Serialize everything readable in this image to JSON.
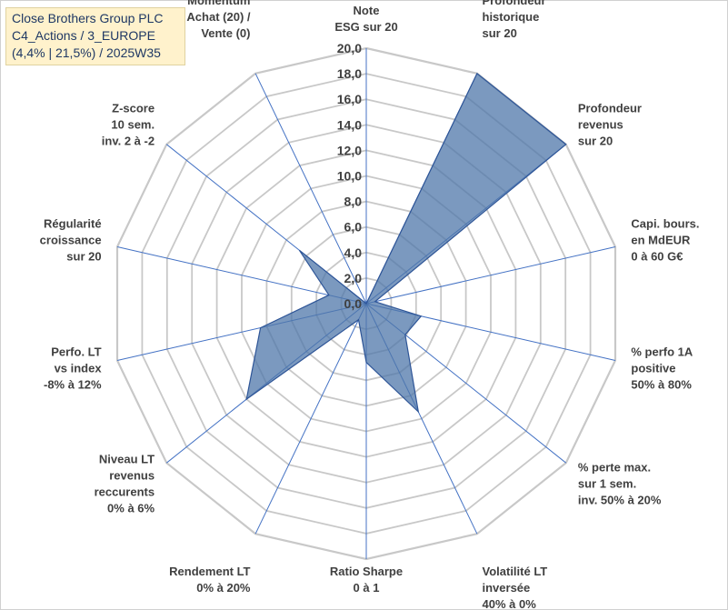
{
  "title_box": {
    "line1": "Close Brothers Group PLC",
    "line2": "C4_Actions / 3_EUROPE",
    "line3": "(4,4% | 21,5%) / 2025W35"
  },
  "chart_data": {
    "type": "radar",
    "title": "Close Brothers Group PLC C4_Actions / 3_EUROPE (4,4% | 21,5%) / 2025W35",
    "rmin": 0,
    "rmax": 20,
    "tick_step": 2,
    "ticks": [
      "0,0",
      "2,0",
      "4,0",
      "6,0",
      "8,0",
      "10,0",
      "12,0",
      "14,0",
      "16,0",
      "18,0",
      "20,0"
    ],
    "grid": true,
    "fill_color": "#4f77aa",
    "fill_opacity": 0.75,
    "line_color": "#2e5597",
    "grid_color": "#c8c8c8",
    "spoke_color": "#4472c4",
    "axes": [
      {
        "label": [
          "Note",
          "ESG sur 20"
        ],
        "value": 0.0
      },
      {
        "label": [
          "Profondeur",
          "historique",
          "sur 20"
        ],
        "value": 20.0
      },
      {
        "label": [
          "Profondeur",
          "revenus",
          "sur 20"
        ],
        "value": 20.0
      },
      {
        "label": [
          "Capi. bours.",
          "en MdEUR",
          "0 à 60 G€"
        ],
        "value": 0.7
      },
      {
        "label": [
          "% perfo 1A",
          "positive",
          "50% à 80%"
        ],
        "value": 4.4
      },
      {
        "label": [
          "% perte max.",
          "sur 1 sem.",
          "inv. 50% à 20%"
        ],
        "value": 3.9
      },
      {
        "label": [
          "Volatilité LT",
          "inversée",
          "40% à 0%"
        ],
        "value": 9.4
      },
      {
        "label": [
          "Ratio Sharpe",
          "0 à 1"
        ],
        "value": 4.6
      },
      {
        "label": [
          "Rendement LT",
          "0% à 20%"
        ],
        "value": 1.4
      },
      {
        "label": [
          "Niveau LT",
          "revenus",
          "reccurents",
          "0% à 6%"
        ],
        "value": 12.0
      },
      {
        "label": [
          "Perfo. LT",
          "vs index",
          "-8% à 12%"
        ],
        "value": 8.5
      },
      {
        "label": [
          "Régularité",
          "croissance",
          "sur 20"
        ],
        "value": 3.0
      },
      {
        "label": [
          "Z-score",
          "10 sem.",
          "inv. 2 à -2"
        ],
        "value": 6.7
      },
      {
        "label": [
          "Momentum",
          "Achat (20) /",
          "Vente (0)"
        ],
        "value": 0.0
      }
    ]
  }
}
